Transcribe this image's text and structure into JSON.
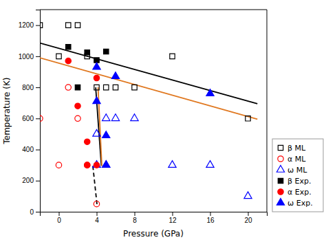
{
  "chart_data": {
    "type": "scatter",
    "xlabel": "Pressure (GPa)",
    "ylabel": "Temperature (K)",
    "xlim": [
      -2,
      22
    ],
    "ylim": [
      0,
      1300
    ],
    "xticks": [
      0,
      4,
      8,
      12,
      16,
      20
    ],
    "yticks": [
      0,
      200,
      400,
      600,
      800,
      1000,
      1200
    ],
    "grid": false,
    "legend": "lower right",
    "series": [
      {
        "name": "β ML",
        "type": "scatter",
        "marker": "square-open",
        "color": "black",
        "x": [
          -2,
          0,
          1,
          2,
          3,
          4,
          5,
          6,
          8,
          12,
          20
        ],
        "values": [
          1200,
          1000,
          1200,
          1200,
          1000,
          800,
          800,
          800,
          800,
          1000,
          600
        ]
      },
      {
        "name": "α ML",
        "type": "scatter",
        "marker": "circle-open",
        "color": "red",
        "x": [
          -2,
          0,
          1,
          2,
          3,
          4
        ],
        "values": [
          600,
          300,
          800,
          600,
          300,
          50
        ]
      },
      {
        "name": "ω ML",
        "type": "scatter",
        "marker": "triangle-open",
        "color": "blue",
        "x": [
          4,
          4,
          5,
          5,
          6,
          8,
          12,
          16,
          20
        ],
        "values": [
          300,
          500,
          300,
          600,
          600,
          600,
          300,
          300,
          100
        ]
      },
      {
        "name": "β Exp.",
        "type": "scatter",
        "marker": "square",
        "color": "black",
        "x": [
          1,
          2,
          3,
          4,
          5
        ],
        "values": [
          1060,
          800,
          1025,
          975,
          1030
        ]
      },
      {
        "name": "α Exp.",
        "type": "scatter",
        "marker": "circle",
        "color": "red",
        "x": [
          1,
          2,
          3,
          3,
          4,
          4
        ],
        "values": [
          970,
          680,
          450,
          300,
          300,
          860
        ]
      },
      {
        "name": "ω Exp.",
        "type": "scatter",
        "marker": "triangle",
        "color": "blue",
        "x": [
          4,
          4,
          5,
          5,
          6,
          16
        ],
        "values": [
          930,
          710,
          490,
          300,
          870,
          760
        ]
      },
      {
        "type": "line",
        "line_style": "solid",
        "color": "black",
        "x": [
          -2,
          21
        ],
        "values": [
          1085,
          695
        ]
      },
      {
        "type": "line",
        "line_style": "solid",
        "color": "#E07820",
        "x": [
          -2,
          21
        ],
        "values": [
          990,
          595
        ]
      },
      {
        "type": "line",
        "line_style": "solid",
        "color": "black",
        "x": [
          3.9,
          4.5
        ],
        "values": [
          800,
          295
        ]
      },
      {
        "type": "line",
        "line_style": "solid",
        "color": "#E07820",
        "x": [
          4.15,
          4.55
        ],
        "values": [
          800,
          295
        ]
      },
      {
        "type": "line",
        "line_style": "dashed",
        "color": "black",
        "x": [
          3.6,
          4.05
        ],
        "values": [
          295,
          40
        ]
      }
    ]
  }
}
